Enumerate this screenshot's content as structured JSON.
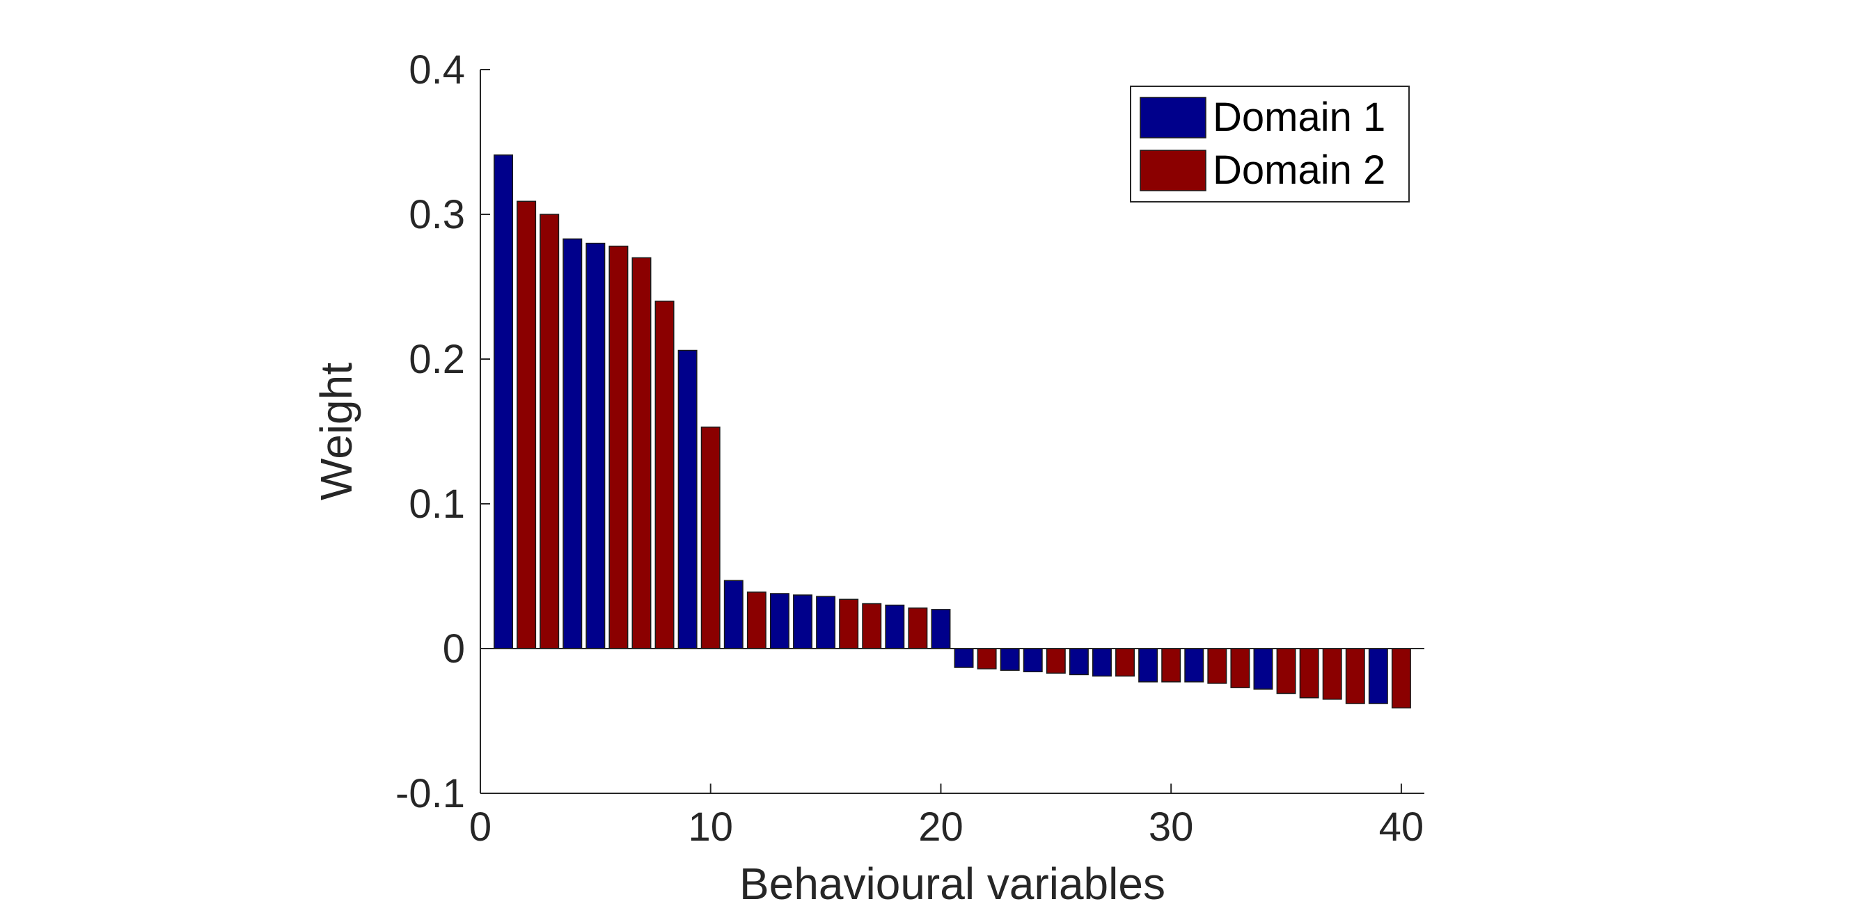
{
  "chart_data": {
    "type": "bar",
    "xlabel": "Behavioural variables",
    "ylabel": "Weight",
    "xlim": [
      0,
      41
    ],
    "ylim": [
      -0.1,
      0.4
    ],
    "xticks": [
      0,
      10,
      20,
      30,
      40
    ],
    "xtick_labels": [
      "0",
      "10",
      "20",
      "30",
      "40"
    ],
    "yticks": [
      -0.1,
      0,
      0.1,
      0.2,
      0.3,
      0.4
    ],
    "ytick_labels": [
      "-0.1",
      "0",
      "0.1",
      "0.2",
      "0.3",
      "0.4"
    ],
    "grid": false,
    "legend_position": "top-right",
    "series": [
      {
        "name": "Domain 1",
        "color": "#00008B"
      },
      {
        "name": "Domain 2",
        "color": "#8B0000"
      }
    ],
    "bars": [
      {
        "x": 1,
        "value": 0.341,
        "series": 0
      },
      {
        "x": 2,
        "value": 0.309,
        "series": 1
      },
      {
        "x": 3,
        "value": 0.3,
        "series": 1
      },
      {
        "x": 4,
        "value": 0.283,
        "series": 0
      },
      {
        "x": 5,
        "value": 0.28,
        "series": 0
      },
      {
        "x": 6,
        "value": 0.278,
        "series": 1
      },
      {
        "x": 7,
        "value": 0.27,
        "series": 1
      },
      {
        "x": 8,
        "value": 0.24,
        "series": 1
      },
      {
        "x": 9,
        "value": 0.206,
        "series": 0
      },
      {
        "x": 10,
        "value": 0.153,
        "series": 1
      },
      {
        "x": 11,
        "value": 0.047,
        "series": 0
      },
      {
        "x": 12,
        "value": 0.039,
        "series": 1
      },
      {
        "x": 13,
        "value": 0.038,
        "series": 0
      },
      {
        "x": 14,
        "value": 0.037,
        "series": 0
      },
      {
        "x": 15,
        "value": 0.036,
        "series": 0
      },
      {
        "x": 16,
        "value": 0.034,
        "series": 1
      },
      {
        "x": 17,
        "value": 0.031,
        "series": 1
      },
      {
        "x": 18,
        "value": 0.03,
        "series": 0
      },
      {
        "x": 19,
        "value": 0.028,
        "series": 1
      },
      {
        "x": 20,
        "value": 0.027,
        "series": 0
      },
      {
        "x": 21,
        "value": -0.013,
        "series": 0
      },
      {
        "x": 22,
        "value": -0.014,
        "series": 1
      },
      {
        "x": 23,
        "value": -0.015,
        "series": 0
      },
      {
        "x": 24,
        "value": -0.016,
        "series": 0
      },
      {
        "x": 25,
        "value": -0.017,
        "series": 1
      },
      {
        "x": 26,
        "value": -0.018,
        "series": 0
      },
      {
        "x": 27,
        "value": -0.019,
        "series": 0
      },
      {
        "x": 28,
        "value": -0.019,
        "series": 1
      },
      {
        "x": 29,
        "value": -0.023,
        "series": 0
      },
      {
        "x": 30,
        "value": -0.023,
        "series": 1
      },
      {
        "x": 31,
        "value": -0.023,
        "series": 0
      },
      {
        "x": 32,
        "value": -0.024,
        "series": 1
      },
      {
        "x": 33,
        "value": -0.027,
        "series": 1
      },
      {
        "x": 34,
        "value": -0.028,
        "series": 0
      },
      {
        "x": 35,
        "value": -0.031,
        "series": 1
      },
      {
        "x": 36,
        "value": -0.034,
        "series": 1
      },
      {
        "x": 37,
        "value": -0.035,
        "series": 1
      },
      {
        "x": 38,
        "value": -0.038,
        "series": 1
      },
      {
        "x": 39,
        "value": -0.038,
        "series": 0
      },
      {
        "x": 40,
        "value": -0.041,
        "series": 1
      }
    ]
  }
}
